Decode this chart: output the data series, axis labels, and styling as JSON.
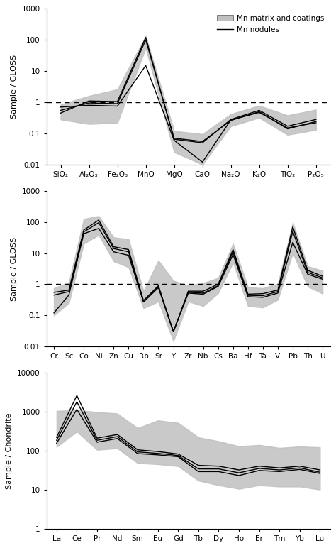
{
  "panel1": {
    "xlabel": [
      "SiO₂",
      "Al₂O₃",
      "Fe₂O₃",
      "MnO",
      "MgO",
      "CaO",
      "Na₂O",
      "K₂O",
      "TiO₂",
      "P₂O₅"
    ],
    "ylabel": "Sample / GLOSS",
    "ylim": [
      0.01,
      1000
    ],
    "yticks": [
      0.01,
      0.1,
      1,
      10,
      100,
      1000
    ],
    "dashed_line": 1.0,
    "line1": [
      0.45,
      1.1,
      1.05,
      120.0,
      0.065,
      0.05,
      0.28,
      0.55,
      0.17,
      0.28
    ],
    "line2": [
      0.7,
      0.8,
      0.75,
      15.0,
      0.06,
      0.012,
      0.27,
      0.47,
      0.15,
      0.22
    ],
    "line3": [
      0.55,
      0.95,
      0.9,
      100.0,
      0.07,
      0.055,
      0.26,
      0.5,
      0.14,
      0.24
    ],
    "shade_upper": [
      0.85,
      1.6,
      2.6,
      135.0,
      0.12,
      0.095,
      0.42,
      0.78,
      0.38,
      0.58
    ],
    "shade_lower": [
      0.28,
      0.2,
      0.22,
      55.0,
      0.025,
      0.01,
      0.17,
      0.32,
      0.09,
      0.13
    ]
  },
  "panel2": {
    "xlabel": [
      "Cr",
      "Sc",
      "Co",
      "Ni",
      "Zn",
      "Cu",
      "Rb",
      "Sr",
      "Y",
      "Zr",
      "Nb",
      "Cs",
      "Ba",
      "Hf",
      "Ta",
      "V",
      "Pb",
      "Th",
      "U"
    ],
    "ylabel": "Sample / GLOSS",
    "ylim": [
      0.01,
      1000
    ],
    "yticks": [
      0.01,
      0.1,
      1,
      10,
      100,
      1000
    ],
    "dashed_line": 1.0,
    "line1": [
      0.55,
      0.65,
      55.0,
      115.0,
      16.0,
      13.0,
      0.3,
      0.9,
      0.03,
      0.6,
      0.6,
      1.0,
      13.0,
      0.48,
      0.5,
      0.65,
      70.0,
      2.8,
      1.8
    ],
    "line2": [
      0.12,
      0.45,
      42.0,
      62.0,
      11.0,
      8.5,
      0.27,
      0.78,
      0.03,
      0.52,
      0.48,
      0.85,
      9.0,
      0.4,
      0.38,
      0.52,
      22.0,
      2.1,
      1.45
    ],
    "line3": [
      0.45,
      0.58,
      48.0,
      95.0,
      14.0,
      11.0,
      0.27,
      0.83,
      0.03,
      0.55,
      0.52,
      0.9,
      11.0,
      0.44,
      0.43,
      0.58,
      50.0,
      2.4,
      1.6
    ],
    "shade_upper": [
      0.75,
      1.15,
      125.0,
      155.0,
      32.0,
      28.0,
      0.6,
      5.8,
      1.3,
      0.92,
      1.1,
      1.6,
      20.0,
      0.8,
      0.75,
      1.05,
      95.0,
      3.8,
      2.7
    ],
    "shade_lower": [
      0.1,
      0.25,
      20.0,
      38.0,
      5.5,
      3.5,
      0.17,
      0.28,
      0.015,
      0.28,
      0.2,
      0.52,
      5.0,
      0.2,
      0.18,
      0.32,
      10.0,
      0.85,
      0.5
    ]
  },
  "panel3": {
    "xlabel": [
      "La",
      "Ce",
      "Pr",
      "Nd",
      "Sm",
      "Eu",
      "Gd",
      "Tb",
      "Dy",
      "Ho",
      "Er",
      "Tm",
      "Yb",
      "Lu"
    ],
    "ylabel": "Sample / Chondrite",
    "ylim": [
      1,
      10000
    ],
    "yticks": [
      1,
      10,
      100,
      1000,
      10000
    ],
    "line1": [
      220.0,
      2600.0,
      210.0,
      260.0,
      105.0,
      95.0,
      82.0,
      42.0,
      40.0,
      32.0,
      40.0,
      36.0,
      40.0,
      32.0
    ],
    "line2": [
      155.0,
      1150.0,
      165.0,
      205.0,
      84.0,
      78.0,
      70.0,
      29.0,
      29.0,
      23.0,
      31.0,
      29.0,
      33.0,
      26.0
    ],
    "line3": [
      185.0,
      1800.0,
      185.0,
      230.0,
      93.0,
      85.0,
      75.0,
      34.0,
      34.0,
      27.0,
      35.0,
      32.0,
      36.0,
      28.0
    ],
    "shade_upper": [
      1050.0,
      1100.0,
      980.0,
      900.0,
      380.0,
      600.0,
      520.0,
      220.0,
      175.0,
      130.0,
      140.0,
      118.0,
      128.0,
      122.0
    ],
    "shade_lower": [
      125.0,
      310.0,
      105.0,
      115.0,
      48.0,
      45.0,
      40.0,
      17.0,
      13.0,
      10.5,
      13.0,
      12.0,
      12.0,
      10.0
    ]
  },
  "legend_patch_color": "#c0c0c0",
  "line_color": "black",
  "shade_color": "#c0c0c0",
  "shade_alpha": 0.85,
  "background_color": "white"
}
